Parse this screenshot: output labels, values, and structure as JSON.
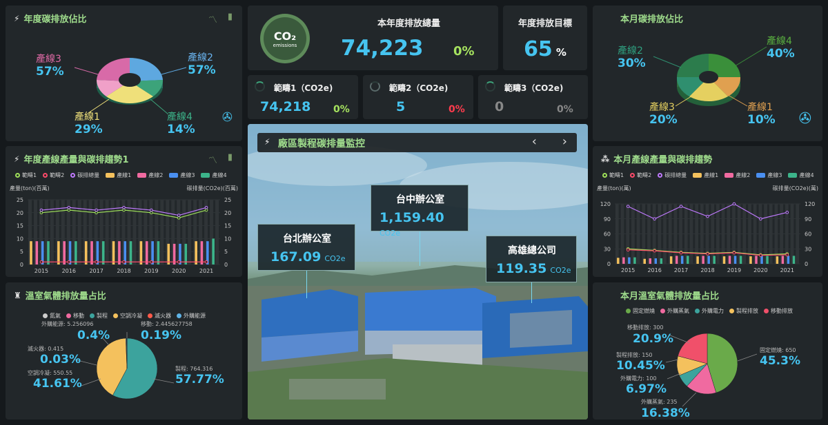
{
  "annual_share": {
    "title": "年度碳排放佔比",
    "lines": [
      {
        "label": "產線2",
        "pct": "57%"
      },
      {
        "label": "產線3",
        "pct": "57%"
      },
      {
        "label": "產線1",
        "pct": "29%"
      },
      {
        "label": "產線4",
        "pct": "14%"
      }
    ]
  },
  "kpi": {
    "logo_main": "CO₂",
    "logo_sub": "emissions",
    "total_title": "本年度排放總量",
    "total_value": "74,223",
    "total_change": "0%",
    "target_title": "年度排放目標",
    "target_value": "65",
    "target_unit": "%"
  },
  "scopes": [
    {
      "label": "範疇1（CO2e)",
      "value": "74,218",
      "change": "0%"
    },
    {
      "label": "範疇2（CO2e)",
      "value": "5",
      "change": "0%"
    },
    {
      "label": "範疇3（CO2e)",
      "value": "0",
      "change": "0%"
    }
  ],
  "monthly_share": {
    "title": "本月碳排放佔比",
    "lines": [
      {
        "label": "產線4",
        "pct": "40%"
      },
      {
        "label": "產線2",
        "pct": "30%"
      },
      {
        "label": "產線3",
        "pct": "20%"
      },
      {
        "label": "產線1",
        "pct": "10%"
      }
    ]
  },
  "monitor": {
    "title": "廠區製程碳排量監控",
    "prev": "‹",
    "next": "›",
    "sites": [
      {
        "name": "台中辦公室",
        "value": "1,159.40",
        "unit": "CO2e"
      },
      {
        "name": "台北辦公室",
        "value": "167.09",
        "unit": "CO2e"
      },
      {
        "name": "高雄總公司",
        "value": "119.35",
        "unit": "CO2e"
      }
    ]
  },
  "annual_trend": {
    "title": "年度產線產量與碳排趨勢1",
    "legend": [
      "範疇1",
      "範疇2",
      "碳排總量",
      "產線1",
      "產線2",
      "產線3",
      "產線4"
    ],
    "left_axis": "產量(ton)(百萬)",
    "right_axis": "碳排量(CO2e)(百萬)"
  },
  "monthly_trend": {
    "title": "本月產線產量與碳排趨勢",
    "legend": [
      "範疇1",
      "範疇2",
      "碳排總量",
      "產線1",
      "產線2",
      "產線3",
      "產線4"
    ],
    "left_axis": "產量(ton)(萬)",
    "right_axis": "碳排量(CO2e)(萬)"
  },
  "ghg": {
    "title": "溫室氣體排放量占比",
    "legend": [
      "氮氣",
      "移動",
      "製程",
      "空調冷凝",
      "滅火器",
      "外購能源"
    ],
    "items": [
      {
        "name": "外購能源:",
        "amt": "5.256096",
        "pct": "0.4%"
      },
      {
        "name": "移動:",
        "amt": "2.445627758",
        "pct": "0.19%"
      },
      {
        "name": "滅火器:",
        "amt": "0.415",
        "pct": "0.03%"
      },
      {
        "name": "空調冷凝:",
        "amt": "550.55",
        "pct": "41.61%"
      },
      {
        "name": "製程:",
        "amt": "764.316",
        "pct": "57.77%"
      }
    ]
  },
  "monthly_ghg": {
    "title": "本月溫室氣體排放量占比",
    "legend": [
      "固定燃燒",
      "外購蒸氣",
      "外購電力",
      "製程排放",
      "移動排放"
    ],
    "items": [
      {
        "name": "移動排放:",
        "amt": "300",
        "pct": "20.9%"
      },
      {
        "name": "製程排放:",
        "amt": "150",
        "pct": "10.45%"
      },
      {
        "name": "外購電力:",
        "amt": "100",
        "pct": "6.97%"
      },
      {
        "name": "外購蒸氣:",
        "amt": "235",
        "pct": "16.38%"
      },
      {
        "name": "固定燃燒:",
        "amt": "650",
        "pct": "45.3%"
      }
    ]
  },
  "chart_data": [
    {
      "type": "bar",
      "title": "年度產線產量與碳排趨勢1",
      "categories": [
        "2015",
        "2016",
        "2017",
        "2018",
        "2019",
        "2020",
        "2021"
      ],
      "ylim": [
        0,
        25
      ],
      "series": [
        {
          "name": "產線1",
          "values": [
            9,
            9,
            9,
            9,
            9,
            8,
            9
          ]
        },
        {
          "name": "產線2",
          "values": [
            9,
            9,
            9,
            9,
            9,
            8,
            9
          ]
        },
        {
          "name": "產線3",
          "values": [
            9,
            9,
            9,
            9,
            9,
            8,
            9
          ]
        },
        {
          "name": "產線4",
          "values": [
            9,
            9,
            9,
            9,
            9,
            8,
            10
          ]
        },
        {
          "name": "範疇1",
          "values": [
            20,
            21,
            20,
            21,
            20,
            18,
            21
          ]
        },
        {
          "name": "碳排總量",
          "values": [
            21,
            22,
            21,
            22,
            21,
            19,
            22
          ]
        },
        {
          "name": "範疇2",
          "values": [
            1,
            1,
            1,
            1,
            1,
            1,
            1
          ]
        }
      ]
    },
    {
      "type": "bar",
      "title": "本月產線產量與碳排趨勢",
      "categories": [
        "2015",
        "2016",
        "2017",
        "2018",
        "2019",
        "2020",
        "2021"
      ],
      "ylim": [
        0,
        120
      ],
      "series": [
        {
          "name": "產線1",
          "values": [
            12,
            10,
            15,
            15,
            15,
            15,
            15
          ]
        },
        {
          "name": "產線2",
          "values": [
            13,
            11,
            16,
            16,
            16,
            16,
            16
          ]
        },
        {
          "name": "產線3",
          "values": [
            13,
            11,
            16,
            16,
            16,
            16,
            16
          ]
        },
        {
          "name": "產線4",
          "values": [
            13,
            11,
            16,
            16,
            16,
            16,
            16
          ]
        },
        {
          "name": "碳排總量",
          "values": [
            115,
            90,
            115,
            95,
            120,
            90,
            103
          ]
        },
        {
          "name": "範疇1",
          "values": [
            30,
            27,
            23,
            21,
            23,
            18,
            20
          ]
        },
        {
          "name": "範疇2",
          "values": [
            28,
            26,
            22,
            20,
            22,
            17,
            18
          ]
        }
      ]
    },
    {
      "type": "pie",
      "title": "溫室氣體排放量占比",
      "categories": [
        "製程",
        "空調冷凝",
        "外購能源",
        "移動",
        "滅火器"
      ],
      "values": [
        57.77,
        41.61,
        0.4,
        0.19,
        0.03
      ],
      "colors": [
        "#3ca39d",
        "#f4c15d",
        "#5fb3e6",
        "#f06aa0",
        "#ff5a4a"
      ]
    },
    {
      "type": "pie",
      "title": "本月溫室氣體排放量占比",
      "categories": [
        "固定燃燒",
        "外購蒸氣",
        "外購電力",
        "製程排放",
        "移動排放"
      ],
      "values": [
        45.3,
        16.38,
        6.97,
        10.45,
        20.9
      ],
      "colors": [
        "#6aaa4a",
        "#f06aa0",
        "#3ca39d",
        "#f4c15d",
        "#f0506a"
      ]
    },
    {
      "type": "pie",
      "title": "年度碳排放佔比",
      "categories": [
        "產線2",
        "產線4",
        "產線1",
        "產線3"
      ],
      "values": [
        57,
        14,
        29,
        57
      ],
      "colors": [
        "#5ea8e0",
        "#3ca37a",
        "#efe07a",
        "#d86aa8"
      ]
    },
    {
      "type": "pie",
      "title": "本月碳排放佔比",
      "categories": [
        "產線4",
        "產線1",
        "產線3",
        "產線2"
      ],
      "values": [
        40,
        10,
        20,
        30
      ],
      "colors": [
        "#3a8f3a",
        "#e0a050",
        "#e5d060",
        "#2f8f6f"
      ]
    }
  ]
}
